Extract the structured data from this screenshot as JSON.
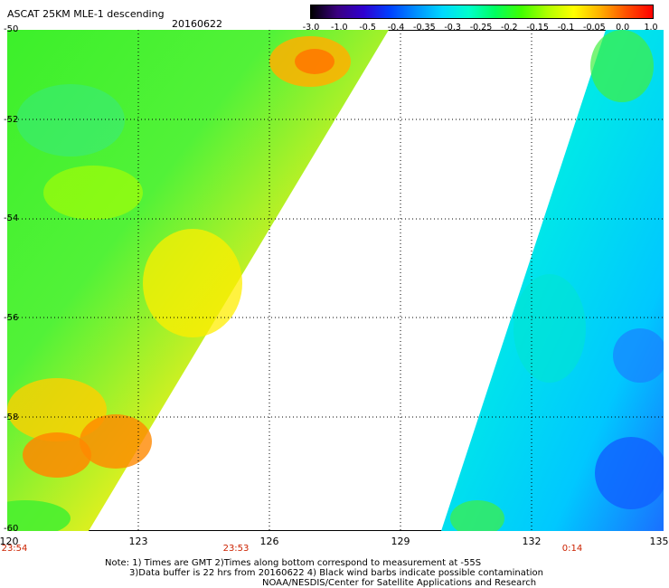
{
  "title": "ASCAT 25KM MLE-1 descending",
  "date": "20160622",
  "colorbar": {
    "labels": [
      "-3.0",
      "-1.0",
      "-0.5",
      "-0.4",
      "-0.35",
      "-0.3",
      "-0.25",
      "-0.2",
      "-0.15",
      "-0.1",
      "-0.05",
      "0.0",
      "1.0"
    ],
    "colors": [
      "#000000",
      "#3a0080",
      "#3000d0",
      "#0040ff",
      "#0090ff",
      "#00d8ff",
      "#00ffcc",
      "#00ff60",
      "#40ff00",
      "#b0ff00",
      "#ffff00",
      "#ffb000",
      "#ff5000",
      "#ff0000"
    ]
  },
  "axes": {
    "y_labels": [
      "-50",
      "-52",
      "-54",
      "-56",
      "-58",
      "-60"
    ],
    "x_labels": [
      "120",
      "123",
      "126",
      "129",
      "132",
      "135"
    ],
    "time_labels": [
      "23:54",
      "23:53",
      "0:14"
    ]
  },
  "notes": {
    "line1": "Note: 1) Times are GMT 2)Times along bottom correspond to measurement at -55S",
    "line2": "3)Data buffer is 22 hrs from 20160622 4) Black wind barbs indicate possible contamination",
    "line3": "NOAA/NESDIS/Center for Satellite Applications and Research"
  }
}
